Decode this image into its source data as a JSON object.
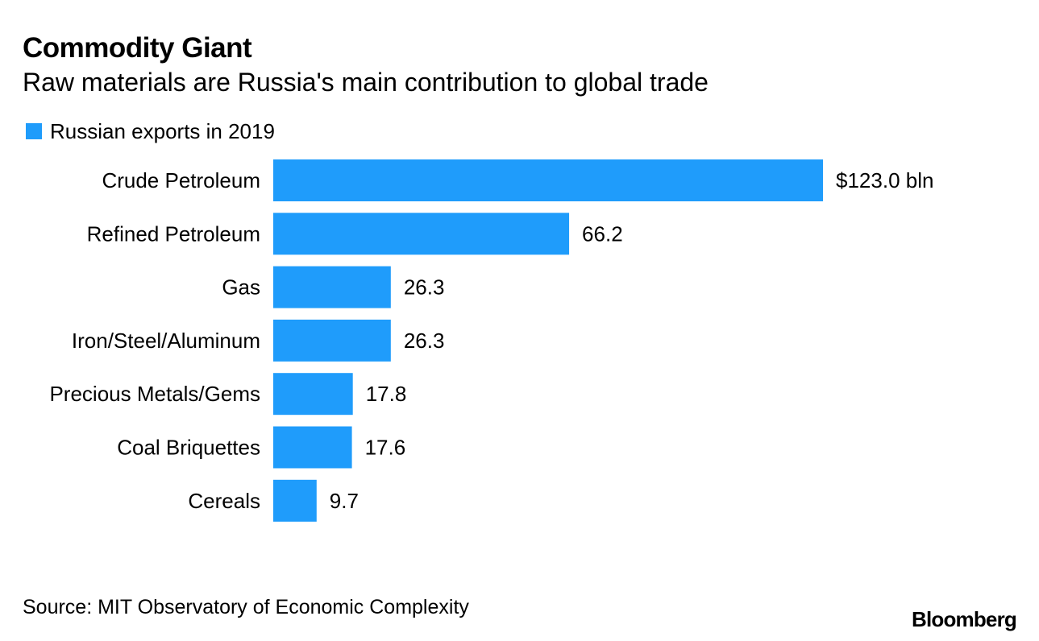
{
  "chart_data": {
    "type": "bar",
    "orientation": "horizontal",
    "title": "Commodity Giant",
    "subtitle": "Raw materials are Russia's main contribution to global trade",
    "legend": [
      "Russian exports in 2019"
    ],
    "categories": [
      "Crude Petroleum",
      "Refined Petroleum",
      "Gas",
      "Iron/Steel/Aluminum",
      "Precious Metals/Gems",
      "Coal Briquettes",
      "Cereals"
    ],
    "series": [
      {
        "name": "Russian exports in 2019",
        "values": [
          123.0,
          66.2,
          26.3,
          26.3,
          17.8,
          17.6,
          9.7
        ]
      }
    ],
    "data_labels": [
      "$123.0 bln",
      "66.2",
      "26.3",
      "26.3",
      "17.8",
      "17.6",
      "9.7"
    ],
    "xlim": [
      0,
      123.0
    ],
    "xlabel": "",
    "ylabel": "",
    "grid": false,
    "legend_position": "top-left",
    "source": "Source: MIT Observatory of Economic Complexity",
    "logo_text": "Bloomberg"
  },
  "colors": {
    "bar": "#1f9cfb",
    "text": "#000000",
    "background": "#ffffff"
  }
}
